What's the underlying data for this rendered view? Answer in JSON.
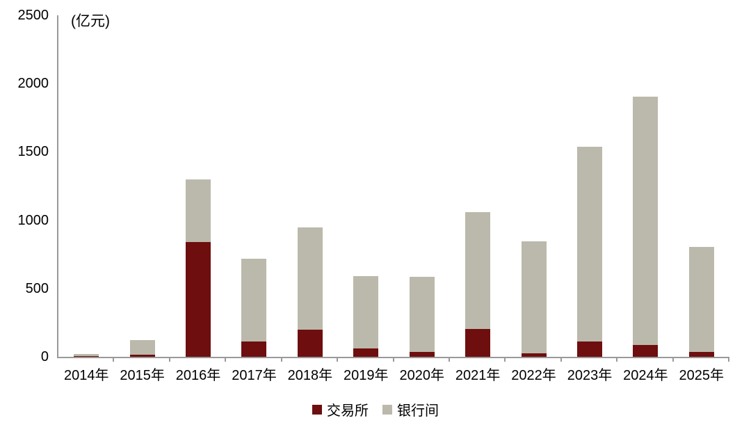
{
  "chart_data": {
    "type": "bar",
    "stacked": true,
    "unit_label": "(亿元)",
    "categories": [
      "2014年",
      "2015年",
      "2016年",
      "2017年",
      "2018年",
      "2019年",
      "2020年",
      "2021年",
      "2022年",
      "2023年",
      "2024年",
      "2025年"
    ],
    "series": [
      {
        "name": "交易所",
        "color": "#6E0E0E",
        "values": [
          5,
          15,
          840,
          110,
          200,
          60,
          35,
          205,
          25,
          110,
          85,
          35
        ]
      },
      {
        "name": "银行间",
        "color": "#BBB9AB",
        "values": [
          15,
          105,
          460,
          610,
          745,
          530,
          550,
          855,
          820,
          1430,
          1820,
          770
        ]
      }
    ],
    "totals": [
      20,
      120,
      1300,
      720,
      945,
      590,
      585,
      1060,
      845,
      1540,
      1905,
      805
    ],
    "ylim": [
      0,
      2500
    ],
    "yticks": [
      0,
      500,
      1000,
      1500,
      2000,
      2500
    ],
    "grid": false,
    "legend_position": "bottom",
    "colors": {
      "axis": "#999999",
      "text": "#000000",
      "background": "#ffffff"
    }
  }
}
